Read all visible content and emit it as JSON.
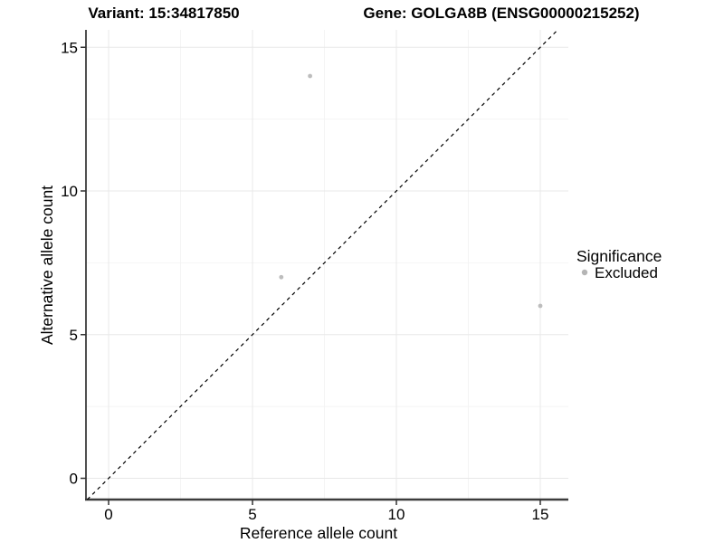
{
  "titles": {
    "variant": "Variant: 15:34817850",
    "gene": "Gene: GOLGA8B (ENSG00000215252)"
  },
  "chart_data": {
    "type": "scatter",
    "title_left": "Variant: 15:34817850",
    "title_right": "Gene: GOLGA8B (ENSG00000215252)",
    "xlabel": "Reference allele count",
    "ylabel": "Alternative allele count",
    "xlim": [
      -0.8,
      16
    ],
    "ylim": [
      -0.75,
      15.6
    ],
    "xticks": [
      0,
      5,
      10,
      15
    ],
    "yticks": [
      0,
      5,
      10,
      15
    ],
    "minor_gridlines_x": [
      2.5,
      7.5,
      12.5
    ],
    "minor_gridlines_y": [
      2.5,
      7.5,
      12.5
    ],
    "grid": "on",
    "identity_line": {
      "equation": "y = x",
      "style": "dashed",
      "color": "#000000"
    },
    "series": [
      {
        "name": "Excluded",
        "color": "#bdbdbd",
        "points": [
          [
            7,
            14
          ],
          [
            6,
            7
          ],
          [
            15,
            6
          ]
        ]
      }
    ],
    "legend": {
      "position": "right",
      "title": "Significance",
      "entries": [
        {
          "label": "Excluded",
          "color": "#b5b5b5"
        }
      ]
    }
  },
  "colors": {
    "background": "#ffffff",
    "point": "#bdbdbd",
    "legend_point": "#b5b5b5",
    "grid_major": "#e8e8e8",
    "grid_minor": "#f4f4f4",
    "axis_line": "#3c3c3c",
    "tick_mark": "#333333",
    "tick_label": "#000000",
    "identity_line": "#000000"
  }
}
